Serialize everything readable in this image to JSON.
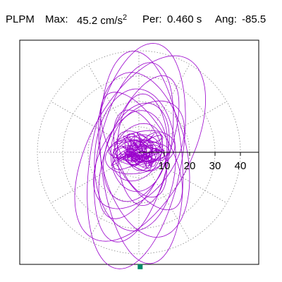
{
  "header": {
    "station": "PLPM",
    "max_label": "Max:",
    "max_value": "45.2 cm/s",
    "max_exponent": "2",
    "period_label": "Per:",
    "period_value": "0.460 s",
    "angle_label": "Ang:",
    "angle_value": "-85.5"
  },
  "chart_data": {
    "type": "polar-particle-motion",
    "title": "",
    "xlabel": "",
    "ylabel": "",
    "max_acceleration": 45.2,
    "max_unit": "cm/s2",
    "period_s": 0.46,
    "angle_deg": -85.5,
    "radial_ticks": [
      10,
      20,
      30,
      40
    ],
    "radial_tick_labels": [
      "10",
      "20",
      "30",
      "40"
    ],
    "radial_max": 40,
    "angular_grid_step_deg": 30,
    "grid": true,
    "trace_color": "#9a00cc",
    "max_marker_color": "#008b6a",
    "max_point": {
      "east": 0.5,
      "north": -45.1
    },
    "loops": [
      {
        "a": 45.0,
        "b": 18.0,
        "tilt_deg": 80,
        "cx": -1.0,
        "cy": -1.5
      },
      {
        "a": 42.0,
        "b": 16.0,
        "tilt_deg": 95,
        "cx": 1.0,
        "cy": -2.0
      },
      {
        "a": 40.0,
        "b": 20.0,
        "tilt_deg": 62,
        "cx": 0.5,
        "cy": 1.5
      },
      {
        "a": 36.0,
        "b": 14.0,
        "tilt_deg": 78,
        "cx": -2.0,
        "cy": 0.0
      },
      {
        "a": 33.0,
        "b": 17.0,
        "tilt_deg": 102,
        "cx": 2.0,
        "cy": -1.0
      },
      {
        "a": 30.0,
        "b": 12.0,
        "tilt_deg": 68,
        "cx": 0.0,
        "cy": 2.0
      },
      {
        "a": 28.0,
        "b": 16.0,
        "tilt_deg": 88,
        "cx": -1.5,
        "cy": -3.0
      },
      {
        "a": 26.0,
        "b": 11.0,
        "tilt_deg": 120,
        "cx": 1.0,
        "cy": 0.5
      },
      {
        "a": 24.0,
        "b": 14.0,
        "tilt_deg": 55,
        "cx": 0.0,
        "cy": -1.0
      },
      {
        "a": 22.0,
        "b": 10.0,
        "tilt_deg": 90,
        "cx": 1.5,
        "cy": 1.0
      },
      {
        "a": 20.0,
        "b": 12.0,
        "tilt_deg": 72,
        "cx": -1.0,
        "cy": 0.0
      },
      {
        "a": 18.0,
        "b": 9.0,
        "tilt_deg": 110,
        "cx": 0.5,
        "cy": -0.5
      },
      {
        "a": 16.0,
        "b": 11.0,
        "tilt_deg": 84,
        "cx": 0.0,
        "cy": 0.5
      },
      {
        "a": 14.0,
        "b": 8.0,
        "tilt_deg": 15,
        "cx": 0.5,
        "cy": 0.0
      },
      {
        "a": 12.0,
        "b": 9.0,
        "tilt_deg": 60,
        "cx": -0.5,
        "cy": 0.0
      },
      {
        "a": 10.0,
        "b": 6.0,
        "tilt_deg": 140,
        "cx": 0.0,
        "cy": 0.5
      },
      {
        "a": 9.0,
        "b": 5.0,
        "tilt_deg": 5,
        "cx": 0.0,
        "cy": 0.0
      },
      {
        "a": 7.0,
        "b": 5.0,
        "tilt_deg": 95,
        "cx": 0.3,
        "cy": -0.3
      },
      {
        "a": 6.0,
        "b": 4.0,
        "tilt_deg": 35,
        "cx": 0.0,
        "cy": 0.0
      },
      {
        "a": 5.0,
        "b": 3.0,
        "tilt_deg": 170,
        "cx": 0.2,
        "cy": 0.2
      },
      {
        "a": 4.0,
        "b": 3.0,
        "tilt_deg": 80,
        "cx": 0.0,
        "cy": 0.0
      },
      {
        "a": 3.0,
        "b": 2.0,
        "tilt_deg": 20,
        "cx": 0.0,
        "cy": 0.0
      },
      {
        "a": 2.0,
        "b": 1.5,
        "tilt_deg": 120,
        "cx": 0.0,
        "cy": 0.0
      },
      {
        "a": 12.0,
        "b": 4.0,
        "tilt_deg": 0,
        "cx": 0.0,
        "cy": 0.5
      },
      {
        "a": 10.0,
        "b": 3.0,
        "tilt_deg": 175,
        "cx": 0.0,
        "cy": -0.5
      }
    ]
  }
}
